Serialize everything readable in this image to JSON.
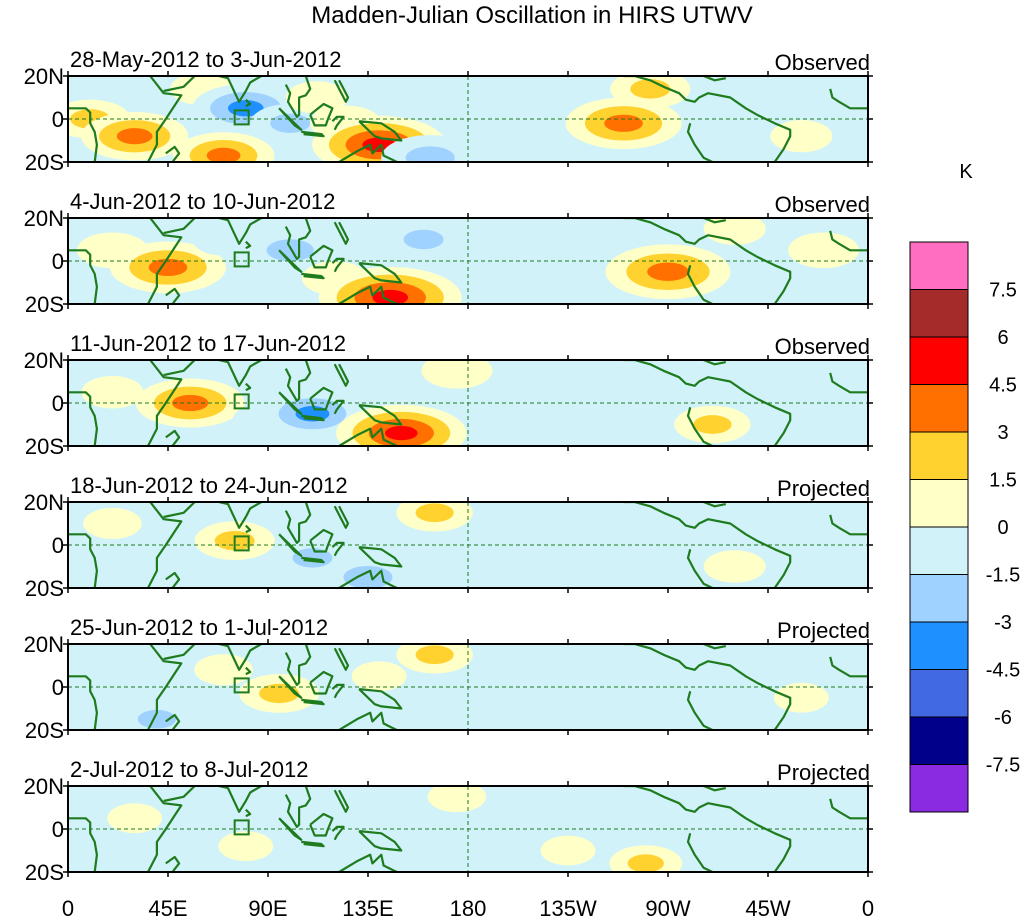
{
  "chart_data": {
    "type": "heatmap",
    "title": "Madden-Julian Oscillation in HIRS UTWV",
    "units": "K",
    "x_ticks": [
      "0",
      "45E",
      "90E",
      "135E",
      "180",
      "135W",
      "90W",
      "45W",
      "0"
    ],
    "y_ticks": [
      "20N",
      "0",
      "20S"
    ],
    "xlim": [
      0,
      360
    ],
    "ylim": [
      -20,
      20
    ],
    "colorbar": {
      "levels": [
        "7.5",
        "6",
        "4.5",
        "3",
        "1.5",
        "0",
        "-1.5",
        "-3",
        "-4.5",
        "-6",
        "-7.5"
      ],
      "colors": [
        "#ff6ec0",
        "#a52a2a",
        "#ff0000",
        "#ff7000",
        "#ffd230",
        "#ffffc8",
        "#d2f2fa",
        "#a0d2ff",
        "#1e90ff",
        "#4169e1",
        "#00008b",
        "#8a2be2"
      ]
    },
    "panels": [
      {
        "label": "28-May-2012 to 3-Jun-2012",
        "status": "Observed",
        "anomalies": [
          {
            "lon": 10,
            "lat": 0,
            "value": 2.0
          },
          {
            "lon": 30,
            "lat": -8,
            "value": 3.5
          },
          {
            "lon": 60,
            "lat": 14,
            "value": 1.0
          },
          {
            "lon": 70,
            "lat": -17,
            "value": 3.2
          },
          {
            "lon": 80,
            "lat": 5,
            "value": -3.5
          },
          {
            "lon": 100,
            "lat": -2,
            "value": -2.0
          },
          {
            "lon": 112,
            "lat": 10,
            "value": 1.0
          },
          {
            "lon": 125,
            "lat": -2,
            "value": 1.5
          },
          {
            "lon": 140,
            "lat": -12,
            "value": 5.0
          },
          {
            "lon": 163,
            "lat": -18,
            "value": -3.0
          },
          {
            "lon": 165,
            "lat": 14,
            "value": -1.5
          },
          {
            "lon": 200,
            "lat": -8,
            "value": -1.0
          },
          {
            "lon": 250,
            "lat": -2,
            "value": 4.0
          },
          {
            "lon": 262,
            "lat": 14,
            "value": 2.0
          },
          {
            "lon": 300,
            "lat": 10,
            "value": -1.0
          },
          {
            "lon": 330,
            "lat": -8,
            "value": 1.0
          }
        ]
      },
      {
        "label": "4-Jun-2012 to 10-Jun-2012",
        "status": "Observed",
        "anomalies": [
          {
            "lon": 20,
            "lat": 5,
            "value": 1.5
          },
          {
            "lon": 45,
            "lat": -3,
            "value": 4.0
          },
          {
            "lon": 70,
            "lat": 10,
            "value": -1.0
          },
          {
            "lon": 100,
            "lat": 5,
            "value": -2.8
          },
          {
            "lon": 120,
            "lat": -8,
            "value": 1.2
          },
          {
            "lon": 145,
            "lat": -17,
            "value": 5.5
          },
          {
            "lon": 160,
            "lat": 10,
            "value": -2.0
          },
          {
            "lon": 200,
            "lat": 8,
            "value": -1.2
          },
          {
            "lon": 220,
            "lat": -12,
            "value": -1.2
          },
          {
            "lon": 270,
            "lat": -5,
            "value": 4.5
          },
          {
            "lon": 300,
            "lat": 15,
            "value": 1.0
          },
          {
            "lon": 340,
            "lat": 5,
            "value": 1.5
          }
        ]
      },
      {
        "label": "11-Jun-2012 to 17-Jun-2012",
        "status": "Observed",
        "anomalies": [
          {
            "lon": 20,
            "lat": 5,
            "value": 1.0
          },
          {
            "lon": 55,
            "lat": 0,
            "value": 3.6
          },
          {
            "lon": 90,
            "lat": -8,
            "value": -1.5
          },
          {
            "lon": 110,
            "lat": -5,
            "value": -3.2
          },
          {
            "lon": 140,
            "lat": 8,
            "value": -1.5
          },
          {
            "lon": 150,
            "lat": -14,
            "value": 4.8
          },
          {
            "lon": 175,
            "lat": 15,
            "value": 1.5
          },
          {
            "lon": 230,
            "lat": 5,
            "value": -1.2
          },
          {
            "lon": 290,
            "lat": -10,
            "value": 1.8
          },
          {
            "lon": 320,
            "lat": 10,
            "value": -0.8
          }
        ]
      },
      {
        "label": "18-Jun-2012 to 24-Jun-2012",
        "status": "Projected",
        "anomalies": [
          {
            "lon": 20,
            "lat": 10,
            "value": 0.8
          },
          {
            "lon": 75,
            "lat": 2,
            "value": 2.0
          },
          {
            "lon": 110,
            "lat": -6,
            "value": -2.0
          },
          {
            "lon": 135,
            "lat": -15,
            "value": -3.0
          },
          {
            "lon": 165,
            "lat": 15,
            "value": 1.8
          },
          {
            "lon": 200,
            "lat": -5,
            "value": -0.8
          },
          {
            "lon": 250,
            "lat": -3,
            "value": -1.2
          },
          {
            "lon": 300,
            "lat": -10,
            "value": 1.0
          }
        ]
      },
      {
        "label": "25-Jun-2012 to 1-Jul-2012",
        "status": "Projected",
        "anomalies": [
          {
            "lon": 15,
            "lat": -10,
            "value": -1.0
          },
          {
            "lon": 40,
            "lat": -15,
            "value": -1.8
          },
          {
            "lon": 70,
            "lat": 8,
            "value": 0.8
          },
          {
            "lon": 95,
            "lat": -3,
            "value": 2.0
          },
          {
            "lon": 140,
            "lat": 5,
            "value": 0.6
          },
          {
            "lon": 165,
            "lat": 15,
            "value": 1.8
          },
          {
            "lon": 220,
            "lat": -5,
            "value": -0.8
          },
          {
            "lon": 280,
            "lat": 12,
            "value": -0.6
          },
          {
            "lon": 330,
            "lat": -5,
            "value": 0.6
          }
        ]
      },
      {
        "label": "2-Jul-2012 to 8-Jul-2012",
        "status": "Projected",
        "anomalies": [
          {
            "lon": 30,
            "lat": 5,
            "value": 0.6
          },
          {
            "lon": 80,
            "lat": -8,
            "value": 0.6
          },
          {
            "lon": 140,
            "lat": -5,
            "value": -0.6
          },
          {
            "lon": 175,
            "lat": 15,
            "value": 0.8
          },
          {
            "lon": 225,
            "lat": -10,
            "value": 0.6
          },
          {
            "lon": 260,
            "lat": -16,
            "value": 1.6
          },
          {
            "lon": 300,
            "lat": 8,
            "value": -0.6
          }
        ]
      }
    ]
  }
}
